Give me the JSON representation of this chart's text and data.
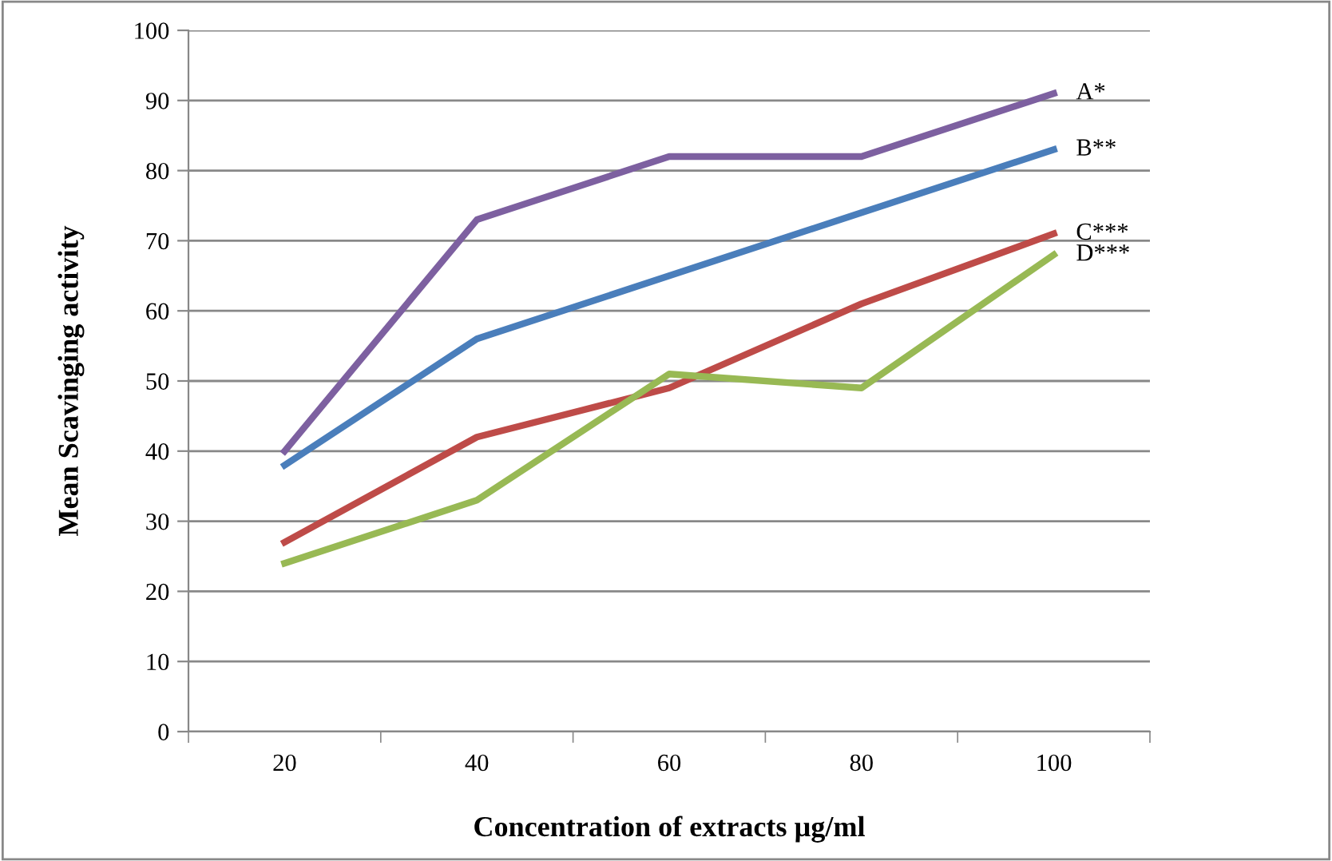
{
  "chart_data": {
    "type": "line",
    "xlabel": "Concentration of extracts µg/ml",
    "ylabel": "Mean Scavinging activity",
    "categories": [
      "20",
      "40",
      "60",
      "80",
      "100"
    ],
    "series": [
      {
        "name": "A*",
        "color": "#7d60a0",
        "values": [
          40,
          73,
          82,
          82,
          91
        ]
      },
      {
        "name": "B**",
        "color": "#4a7ebb",
        "values": [
          38,
          56,
          65,
          74,
          83
        ]
      },
      {
        "name": "C***",
        "color": "#be4b48",
        "values": [
          27,
          42,
          49,
          61,
          71
        ]
      },
      {
        "name": "D***",
        "color": "#98b954",
        "values": [
          24,
          33,
          51,
          49,
          68
        ]
      }
    ],
    "ylim": [
      0,
      100
    ],
    "yticks": [
      0,
      10,
      20,
      30,
      40,
      50,
      60,
      70,
      80,
      90,
      100
    ],
    "grid": "y",
    "legend": false,
    "marker": "none",
    "line_style": "solid"
  }
}
